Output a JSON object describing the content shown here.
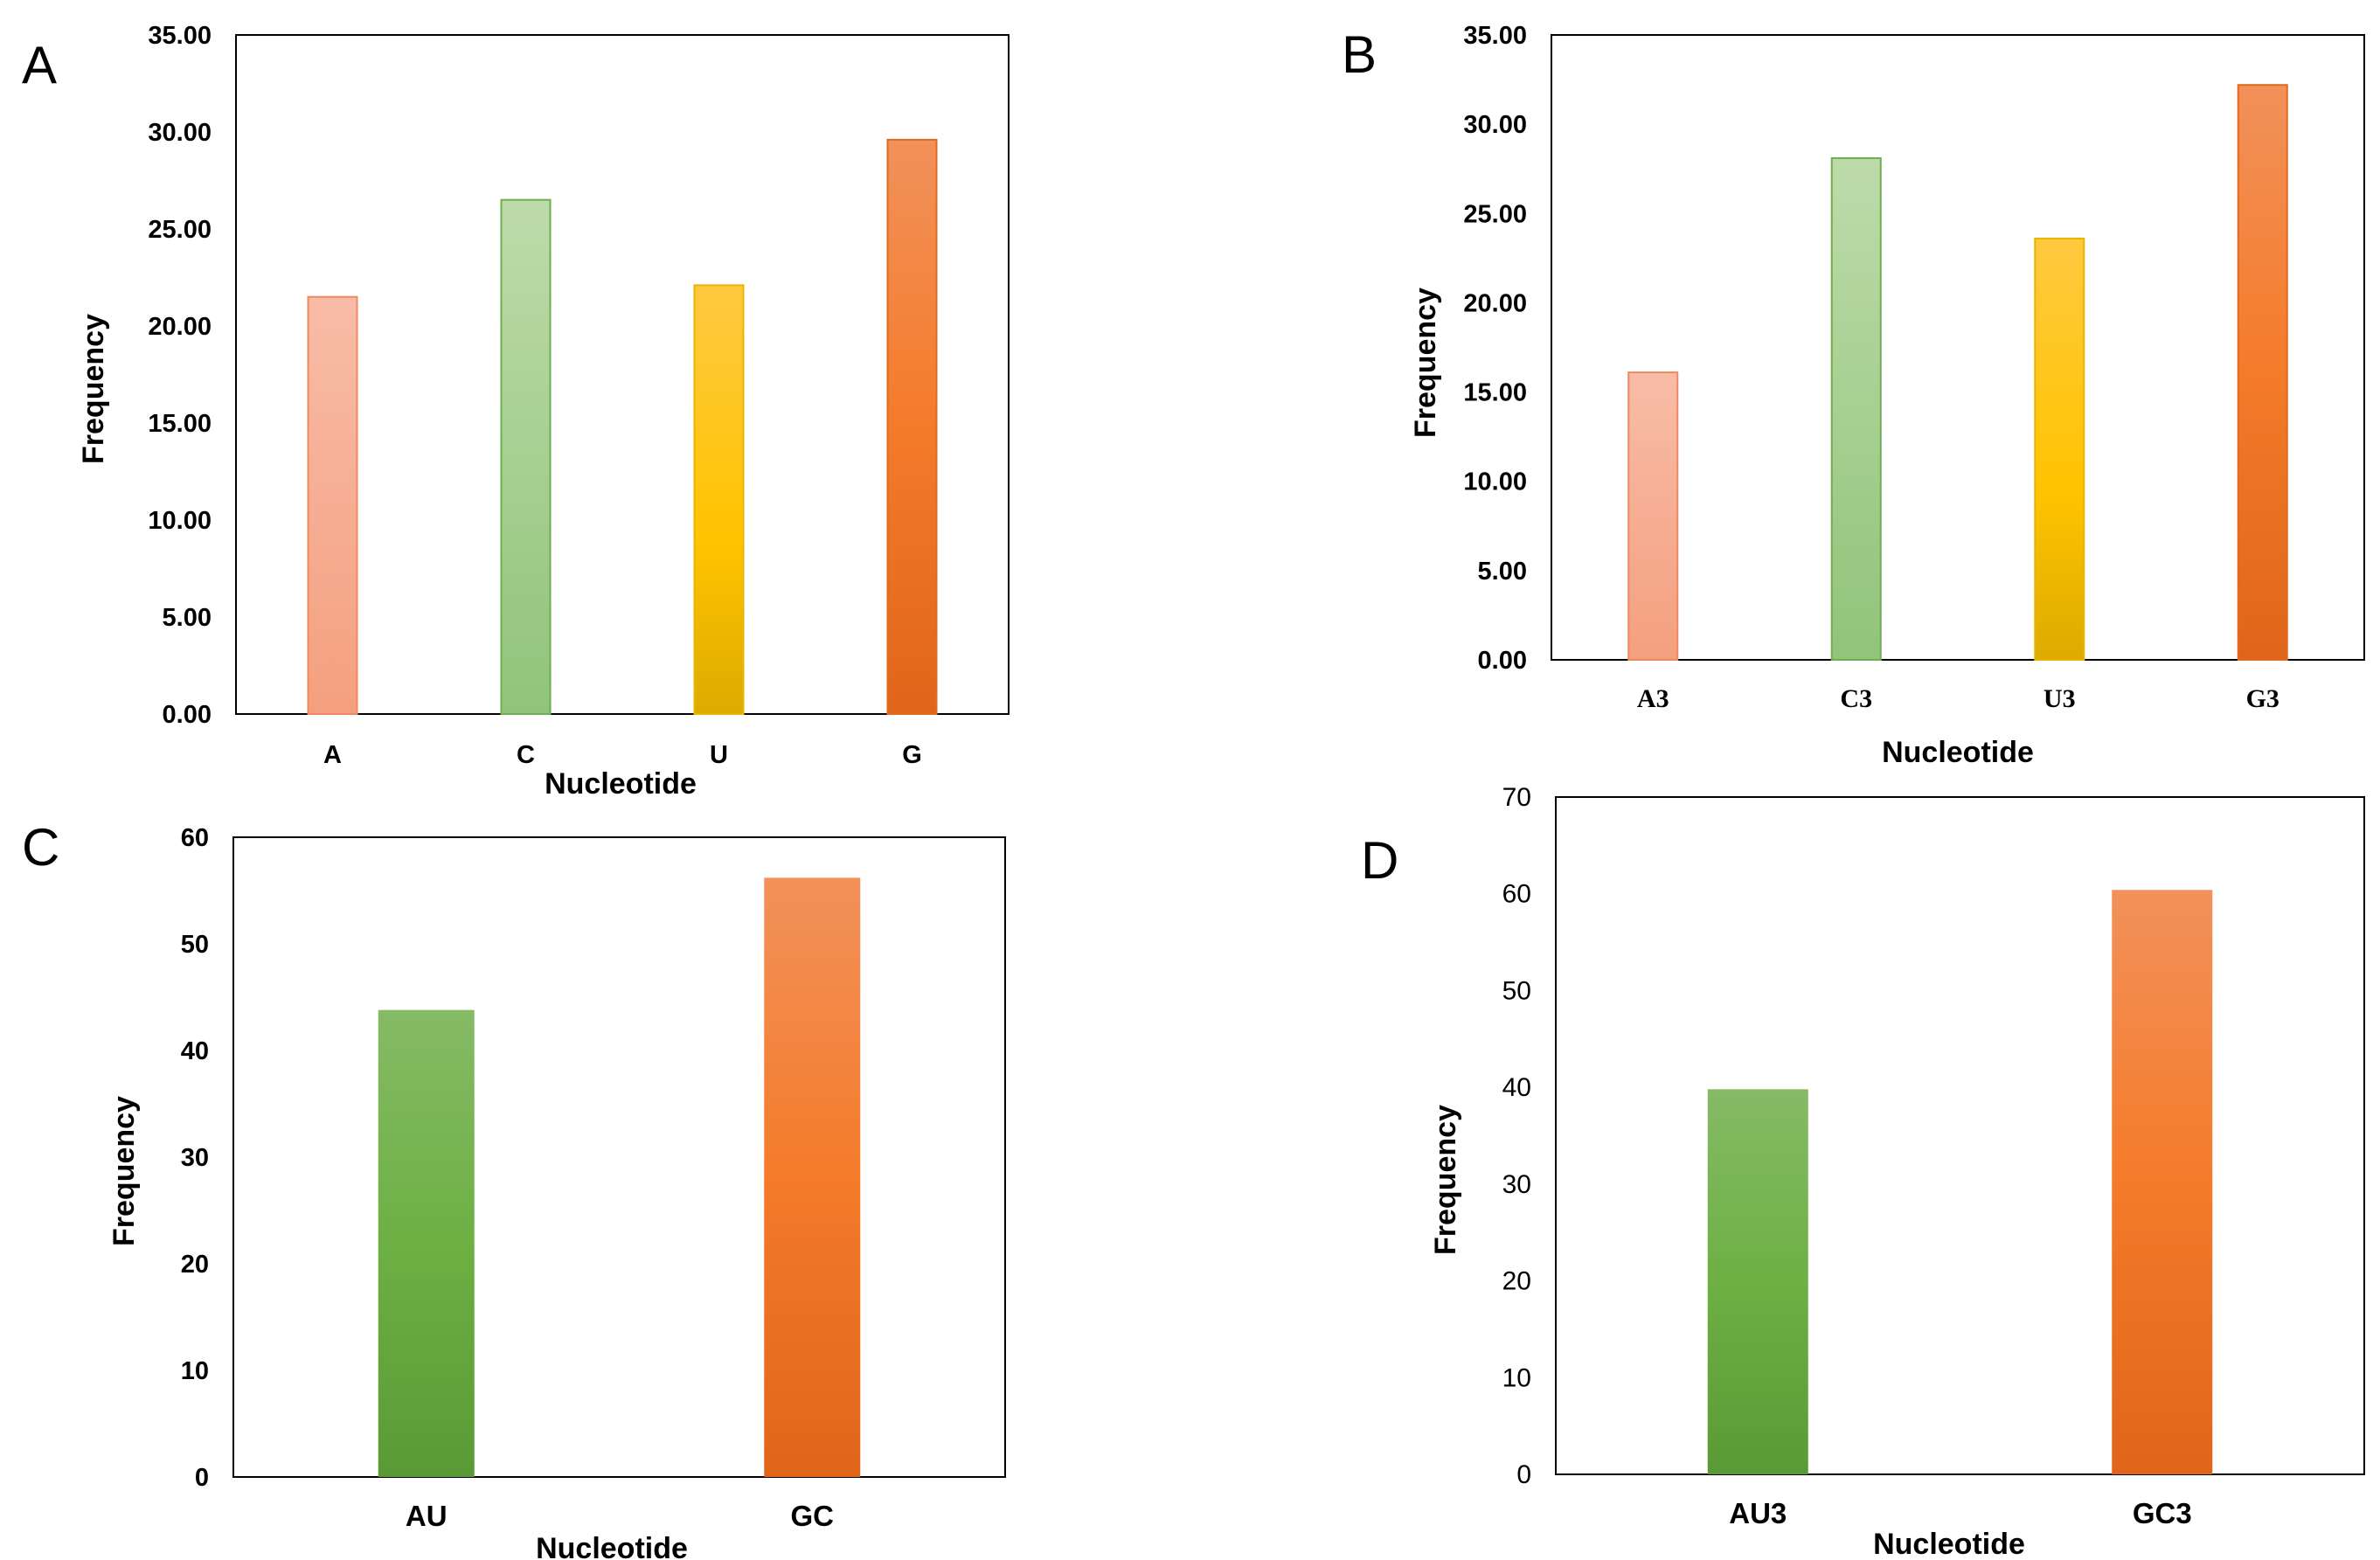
{
  "panels": [
    {
      "letter": "A"
    },
    {
      "letter": "B"
    },
    {
      "letter": "C"
    },
    {
      "letter": "D"
    }
  ],
  "chart_data": [
    {
      "type": "bar",
      "panel": "A",
      "categories": [
        "A",
        "C",
        "U",
        "G"
      ],
      "values": [
        21.5,
        26.5,
        22.1,
        29.6
      ],
      "xlabel": "Nucleotide",
      "ylabel": "Frequency",
      "ylim": [
        0,
        35
      ],
      "yticks": [
        "0.00",
        "5.00",
        "10.00",
        "15.00",
        "20.00",
        "25.00",
        "30.00",
        "35.00"
      ],
      "grid": false,
      "colors": [
        "#F5A586",
        "#9CCB84",
        "#FDC300",
        "#F37E2E"
      ]
    },
    {
      "type": "bar",
      "panel": "B",
      "categories": [
        "A3",
        "C3",
        "U3",
        "G3"
      ],
      "values": [
        16.1,
        28.1,
        23.6,
        32.2
      ],
      "xlabel": "Nucleotide",
      "ylabel": "Frequency",
      "ylim": [
        0,
        35
      ],
      "yticks": [
        "0.00",
        "5.00",
        "10.00",
        "15.00",
        "20.00",
        "25.00",
        "30.00",
        "35.00"
      ],
      "grid": false,
      "colors": [
        "#F5A586",
        "#9CCB84",
        "#FDC300",
        "#F37E2E"
      ]
    },
    {
      "type": "bar",
      "panel": "C",
      "categories": [
        "AU",
        "GC"
      ],
      "values": [
        43.8,
        56.2
      ],
      "xlabel": "Nucleotide",
      "ylabel": "Frequency",
      "ylim": [
        0,
        60
      ],
      "yticks": [
        "0",
        "10",
        "20",
        "30",
        "40",
        "50",
        "60"
      ],
      "grid": false,
      "colors": [
        "#6BB044",
        "#F37E2E"
      ]
    },
    {
      "type": "bar",
      "panel": "D",
      "categories": [
        "AU3",
        "GC3"
      ],
      "values": [
        39.8,
        60.4
      ],
      "xlabel": "Nucleotide",
      "ylabel": "Frequency",
      "ylim": [
        0,
        70
      ],
      "yticks": [
        "0",
        "10",
        "20",
        "30",
        "40",
        "50",
        "60",
        "70"
      ],
      "grid": false,
      "colors": [
        "#6BB044",
        "#F37E2E"
      ]
    }
  ]
}
